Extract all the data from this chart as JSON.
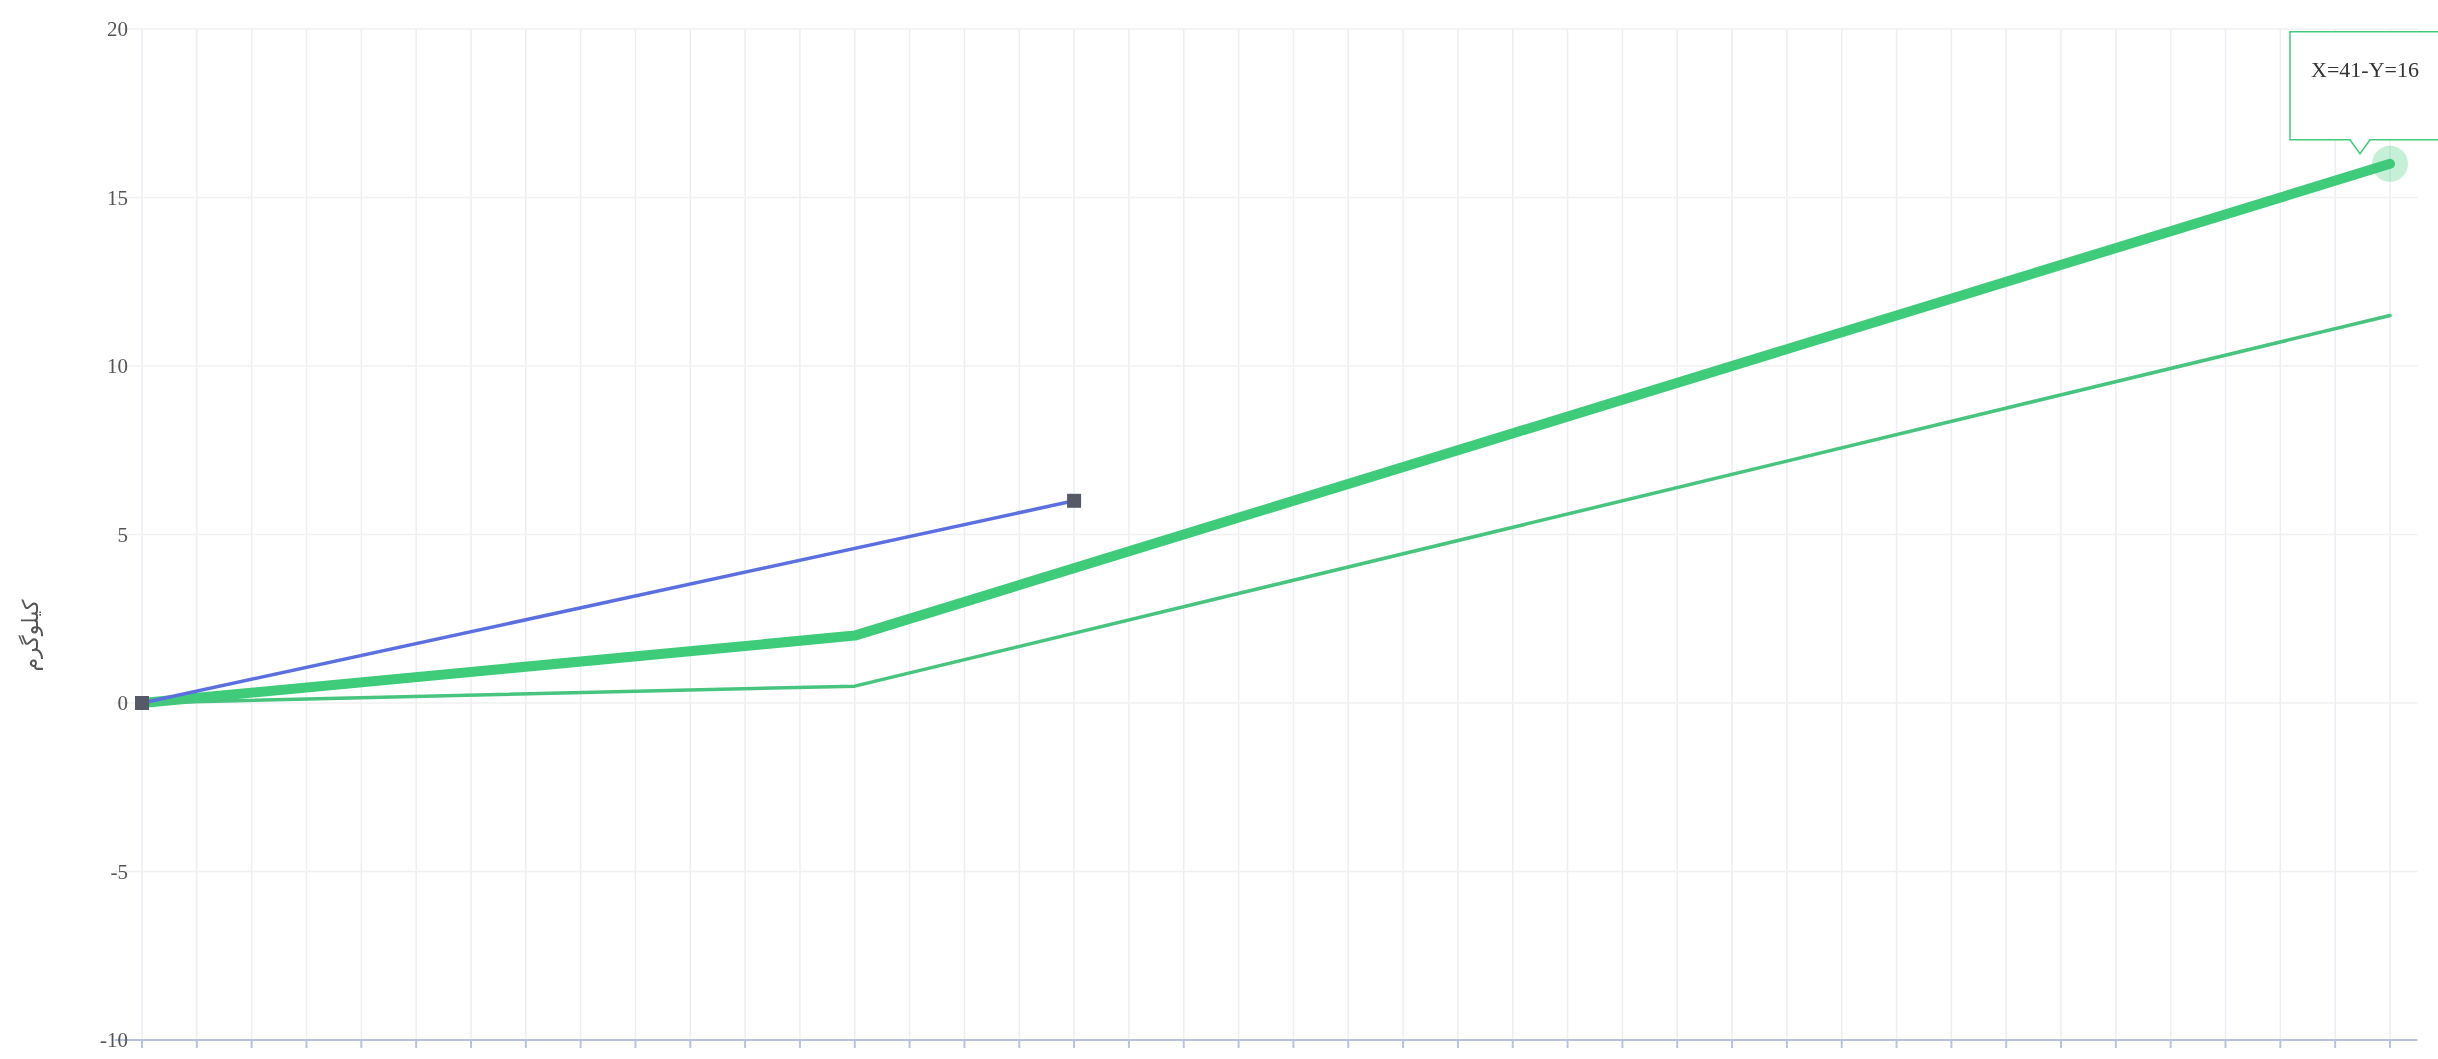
{
  "chart_data": {
    "type": "line",
    "ylabel": "کیلوگرم",
    "categories": [
      null,
      null,
      null,
      null,
      null,
      null,
      null,
      null,
      null,
      null,
      null,
      null,
      null,
      null,
      null,
      null,
      null,
      null,
      null,
      null,
      null,
      null,
      null,
      null,
      null,
      null,
      null,
      null,
      null,
      null,
      null,
      null,
      null,
      null,
      null,
      null,
      null,
      null,
      null,
      null,
      null,
      null
    ],
    "ylim": [
      -10,
      20
    ],
    "yticks": [
      -10,
      -5,
      0,
      5,
      10,
      15,
      20
    ],
    "grid": true,
    "series": [
      {
        "color": "#3ecb7a",
        "values": [
          0,
          null,
          null,
          null,
          null,
          null,
          null,
          null,
          null,
          null,
          null,
          null,
          null,
          2,
          null,
          null,
          null,
          null,
          null,
          null,
          null,
          null,
          null,
          null,
          null,
          null,
          null,
          null,
          null,
          null,
          null,
          null,
          null,
          null,
          null,
          null,
          null,
          null,
          null,
          null,
          null,
          16
        ]
      },
      {
        "color": "#47c47e",
        "values": [
          0,
          null,
          null,
          null,
          null,
          null,
          null,
          null,
          null,
          null,
          null,
          null,
          null,
          0.5,
          null,
          null,
          null,
          null,
          null,
          null,
          null,
          null,
          null,
          null,
          null,
          null,
          null,
          null,
          null,
          null,
          null,
          null,
          null,
          null,
          null,
          null,
          null,
          null,
          null,
          null,
          null,
          11.5
        ]
      },
      {
        "color": "#5b6fe0",
        "values": [
          0,
          null,
          null,
          null,
          null,
          null,
          null,
          null,
          null,
          null,
          null,
          null,
          null,
          null,
          null,
          null,
          null,
          6,
          null,
          null,
          null,
          null,
          null,
          null,
          null,
          null,
          null,
          null,
          null,
          null,
          null,
          null,
          null,
          null,
          null,
          null,
          null,
          null,
          null,
          null,
          null,
          null
        ],
        "marker": "square"
      }
    ],
    "annotations": [
      "X=41-Y=16"
    ]
  }
}
